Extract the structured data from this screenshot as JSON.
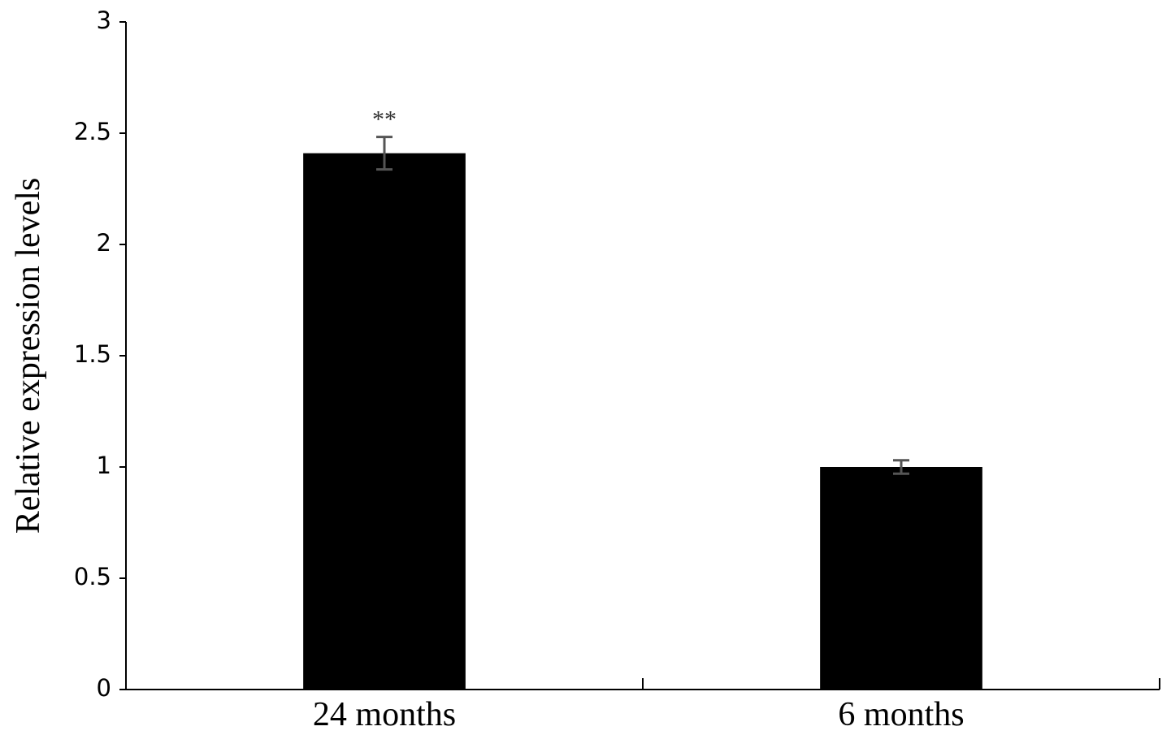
{
  "chart_data": {
    "type": "bar",
    "ylabel": "Relative expression levels",
    "categories": [
      "24 months",
      "6 months"
    ],
    "values": [
      2.41,
      1.0
    ],
    "errors": [
      0.073,
      0.03
    ],
    "color": "#000000",
    "error_color": "#555555",
    "ylim": [
      0,
      3
    ],
    "yticks": [
      0,
      0.5,
      1,
      1.5,
      2,
      2.5,
      3
    ],
    "grid": false,
    "annotations": [
      {
        "category": "24 months",
        "text": "**"
      }
    ]
  }
}
